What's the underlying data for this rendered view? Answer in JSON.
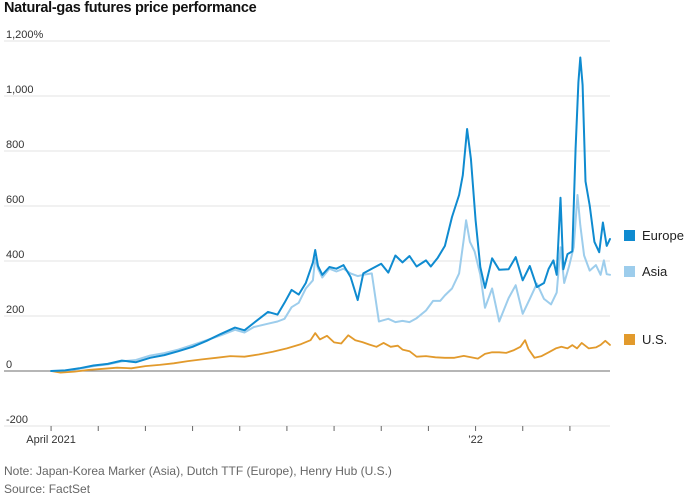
{
  "chart_data": {
    "type": "line",
    "title": "Natural-gas futures price performance",
    "ylabel": "",
    "xlabel": "",
    "ylim": [
      -200,
      1200
    ],
    "yticks": [
      -200,
      0,
      200,
      400,
      600,
      800,
      1000,
      1200
    ],
    "ytick_labels": [
      "-200",
      "0",
      "200",
      "400",
      "600",
      "800",
      "1,000",
      "1,200%"
    ],
    "x_unit": "month index since Jan 2021",
    "xlim": [
      2.85,
      14.85
    ],
    "xticks": [
      3,
      4,
      5,
      6,
      7,
      8,
      9,
      10,
      11,
      12,
      13,
      14
    ],
    "xtick_labels": [
      {
        "x": 3,
        "label": "April 2021"
      },
      {
        "x": 12,
        "label": "’22"
      }
    ],
    "grid": "horizontal",
    "legend": "right",
    "zero_line": true,
    "series": [
      {
        "name": "Europe",
        "color": "#0f8bd0",
        "points": [
          [
            3,
            0
          ],
          [
            3.3,
            2
          ],
          [
            3.6,
            10
          ],
          [
            3.9,
            20
          ],
          [
            4.2,
            26
          ],
          [
            4.5,
            38
          ],
          [
            4.8,
            32
          ],
          [
            5.1,
            48
          ],
          [
            5.4,
            58
          ],
          [
            5.7,
            72
          ],
          [
            6.0,
            88
          ],
          [
            6.3,
            110
          ],
          [
            6.6,
            135
          ],
          [
            6.9,
            158
          ],
          [
            7.1,
            148
          ],
          [
            7.3,
            175
          ],
          [
            7.6,
            215
          ],
          [
            7.8,
            205
          ],
          [
            7.95,
            248
          ],
          [
            8.1,
            295
          ],
          [
            8.25,
            278
          ],
          [
            8.4,
            320
          ],
          [
            8.55,
            395
          ],
          [
            8.6,
            440
          ],
          [
            8.66,
            382
          ],
          [
            8.75,
            350
          ],
          [
            8.9,
            378
          ],
          [
            9.05,
            372
          ],
          [
            9.2,
            385
          ],
          [
            9.35,
            342
          ],
          [
            9.5,
            258
          ],
          [
            9.62,
            355
          ],
          [
            9.8,
            372
          ],
          [
            10.0,
            390
          ],
          [
            10.15,
            358
          ],
          [
            10.3,
            420
          ],
          [
            10.45,
            395
          ],
          [
            10.6,
            418
          ],
          [
            10.75,
            380
          ],
          [
            10.95,
            402
          ],
          [
            11.05,
            380
          ],
          [
            11.2,
            412
          ],
          [
            11.35,
            455
          ],
          [
            11.5,
            560
          ],
          [
            11.65,
            640
          ],
          [
            11.73,
            712
          ],
          [
            11.82,
            880
          ],
          [
            11.9,
            772
          ],
          [
            12.0,
            548
          ],
          [
            12.1,
            378
          ],
          [
            12.2,
            302
          ],
          [
            12.35,
            410
          ],
          [
            12.5,
            368
          ],
          [
            12.7,
            370
          ],
          [
            12.85,
            414
          ],
          [
            13.0,
            330
          ],
          [
            13.15,
            382
          ],
          [
            13.3,
            305
          ],
          [
            13.45,
            320
          ],
          [
            13.55,
            372
          ],
          [
            13.65,
            402
          ],
          [
            13.72,
            350
          ],
          [
            13.8,
            630
          ],
          [
            13.86,
            370
          ],
          [
            13.95,
            425
          ],
          [
            14.05,
            435
          ],
          [
            14.12,
            810
          ],
          [
            14.18,
            1050
          ],
          [
            14.22,
            1140
          ],
          [
            14.27,
            1040
          ],
          [
            14.33,
            690
          ],
          [
            14.42,
            602
          ],
          [
            14.52,
            470
          ],
          [
            14.62,
            432
          ],
          [
            14.7,
            540
          ],
          [
            14.78,
            455
          ],
          [
            14.85,
            480
          ]
        ]
      },
      {
        "name": "Asia",
        "color": "#9dcdec",
        "points": [
          [
            3,
            0
          ],
          [
            3.3,
            0
          ],
          [
            3.6,
            8
          ],
          [
            3.9,
            18
          ],
          [
            4.2,
            24
          ],
          [
            4.5,
            35
          ],
          [
            4.8,
            40
          ],
          [
            5.1,
            56
          ],
          [
            5.4,
            65
          ],
          [
            5.7,
            78
          ],
          [
            6.0,
            95
          ],
          [
            6.3,
            112
          ],
          [
            6.6,
            130
          ],
          [
            6.9,
            150
          ],
          [
            7.1,
            140
          ],
          [
            7.3,
            160
          ],
          [
            7.6,
            172
          ],
          [
            7.8,
            180
          ],
          [
            7.95,
            190
          ],
          [
            8.1,
            232
          ],
          [
            8.25,
            248
          ],
          [
            8.4,
            300
          ],
          [
            8.55,
            330
          ],
          [
            8.6,
            410
          ],
          [
            8.66,
            372
          ],
          [
            8.75,
            340
          ],
          [
            8.9,
            372
          ],
          [
            9.05,
            362
          ],
          [
            9.2,
            372
          ],
          [
            9.35,
            355
          ],
          [
            9.5,
            345
          ],
          [
            9.62,
            350
          ],
          [
            9.8,
            355
          ],
          [
            9.95,
            180
          ],
          [
            10.15,
            190
          ],
          [
            10.3,
            178
          ],
          [
            10.45,
            182
          ],
          [
            10.6,
            178
          ],
          [
            10.75,
            192
          ],
          [
            10.95,
            220
          ],
          [
            11.1,
            255
          ],
          [
            11.25,
            255
          ],
          [
            11.35,
            275
          ],
          [
            11.5,
            300
          ],
          [
            11.65,
            355
          ],
          [
            11.75,
            480
          ],
          [
            11.8,
            548
          ],
          [
            11.88,
            470
          ],
          [
            11.98,
            435
          ],
          [
            12.1,
            350
          ],
          [
            12.2,
            230
          ],
          [
            12.35,
            300
          ],
          [
            12.5,
            180
          ],
          [
            12.7,
            265
          ],
          [
            12.85,
            312
          ],
          [
            13.0,
            208
          ],
          [
            13.15,
            262
          ],
          [
            13.3,
            318
          ],
          [
            13.45,
            262
          ],
          [
            13.6,
            242
          ],
          [
            13.72,
            285
          ],
          [
            13.8,
            450
          ],
          [
            13.88,
            320
          ],
          [
            13.98,
            380
          ],
          [
            14.08,
            450
          ],
          [
            14.16,
            640
          ],
          [
            14.22,
            530
          ],
          [
            14.3,
            420
          ],
          [
            14.42,
            365
          ],
          [
            14.55,
            385
          ],
          [
            14.65,
            350
          ],
          [
            14.72,
            402
          ],
          [
            14.78,
            352
          ],
          [
            14.85,
            350
          ]
        ]
      },
      {
        "name": "U.S.",
        "color": "#e29a2c",
        "points": [
          [
            3,
            0
          ],
          [
            3.2,
            -6
          ],
          [
            3.5,
            -2
          ],
          [
            3.8,
            4
          ],
          [
            4.1,
            8
          ],
          [
            4.4,
            12
          ],
          [
            4.7,
            10
          ],
          [
            5.0,
            18
          ],
          [
            5.3,
            22
          ],
          [
            5.6,
            28
          ],
          [
            5.9,
            36
          ],
          [
            6.2,
            42
          ],
          [
            6.5,
            48
          ],
          [
            6.8,
            54
          ],
          [
            7.1,
            52
          ],
          [
            7.4,
            60
          ],
          [
            7.7,
            70
          ],
          [
            8.0,
            82
          ],
          [
            8.3,
            98
          ],
          [
            8.5,
            112
          ],
          [
            8.6,
            138
          ],
          [
            8.7,
            115
          ],
          [
            8.85,
            128
          ],
          [
            9.0,
            104
          ],
          [
            9.15,
            100
          ],
          [
            9.3,
            130
          ],
          [
            9.45,
            112
          ],
          [
            9.6,
            105
          ],
          [
            9.75,
            96
          ],
          [
            9.9,
            88
          ],
          [
            10.05,
            102
          ],
          [
            10.2,
            88
          ],
          [
            10.35,
            92
          ],
          [
            10.45,
            78
          ],
          [
            10.6,
            72
          ],
          [
            10.75,
            52
          ],
          [
            10.95,
            54
          ],
          [
            11.15,
            50
          ],
          [
            11.35,
            48
          ],
          [
            11.55,
            48
          ],
          [
            11.75,
            55
          ],
          [
            11.9,
            50
          ],
          [
            12.05,
            45
          ],
          [
            12.2,
            62
          ],
          [
            12.35,
            68
          ],
          [
            12.5,
            68
          ],
          [
            12.65,
            66
          ],
          [
            12.8,
            75
          ],
          [
            12.95,
            88
          ],
          [
            13.05,
            112
          ],
          [
            13.12,
            80
          ],
          [
            13.25,
            48
          ],
          [
            13.4,
            54
          ],
          [
            13.55,
            68
          ],
          [
            13.7,
            82
          ],
          [
            13.82,
            88
          ],
          [
            13.95,
            82
          ],
          [
            14.05,
            94
          ],
          [
            14.15,
            82
          ],
          [
            14.25,
            102
          ],
          [
            14.4,
            82
          ],
          [
            14.55,
            86
          ],
          [
            14.65,
            95
          ],
          [
            14.75,
            110
          ],
          [
            14.85,
            95
          ]
        ]
      }
    ]
  },
  "notes": {
    "note": "Note: Japan-Korea Marker (Asia), Dutch TTF (Europe), Henry Hub (U.S.)",
    "source": "Source: FactSet"
  }
}
